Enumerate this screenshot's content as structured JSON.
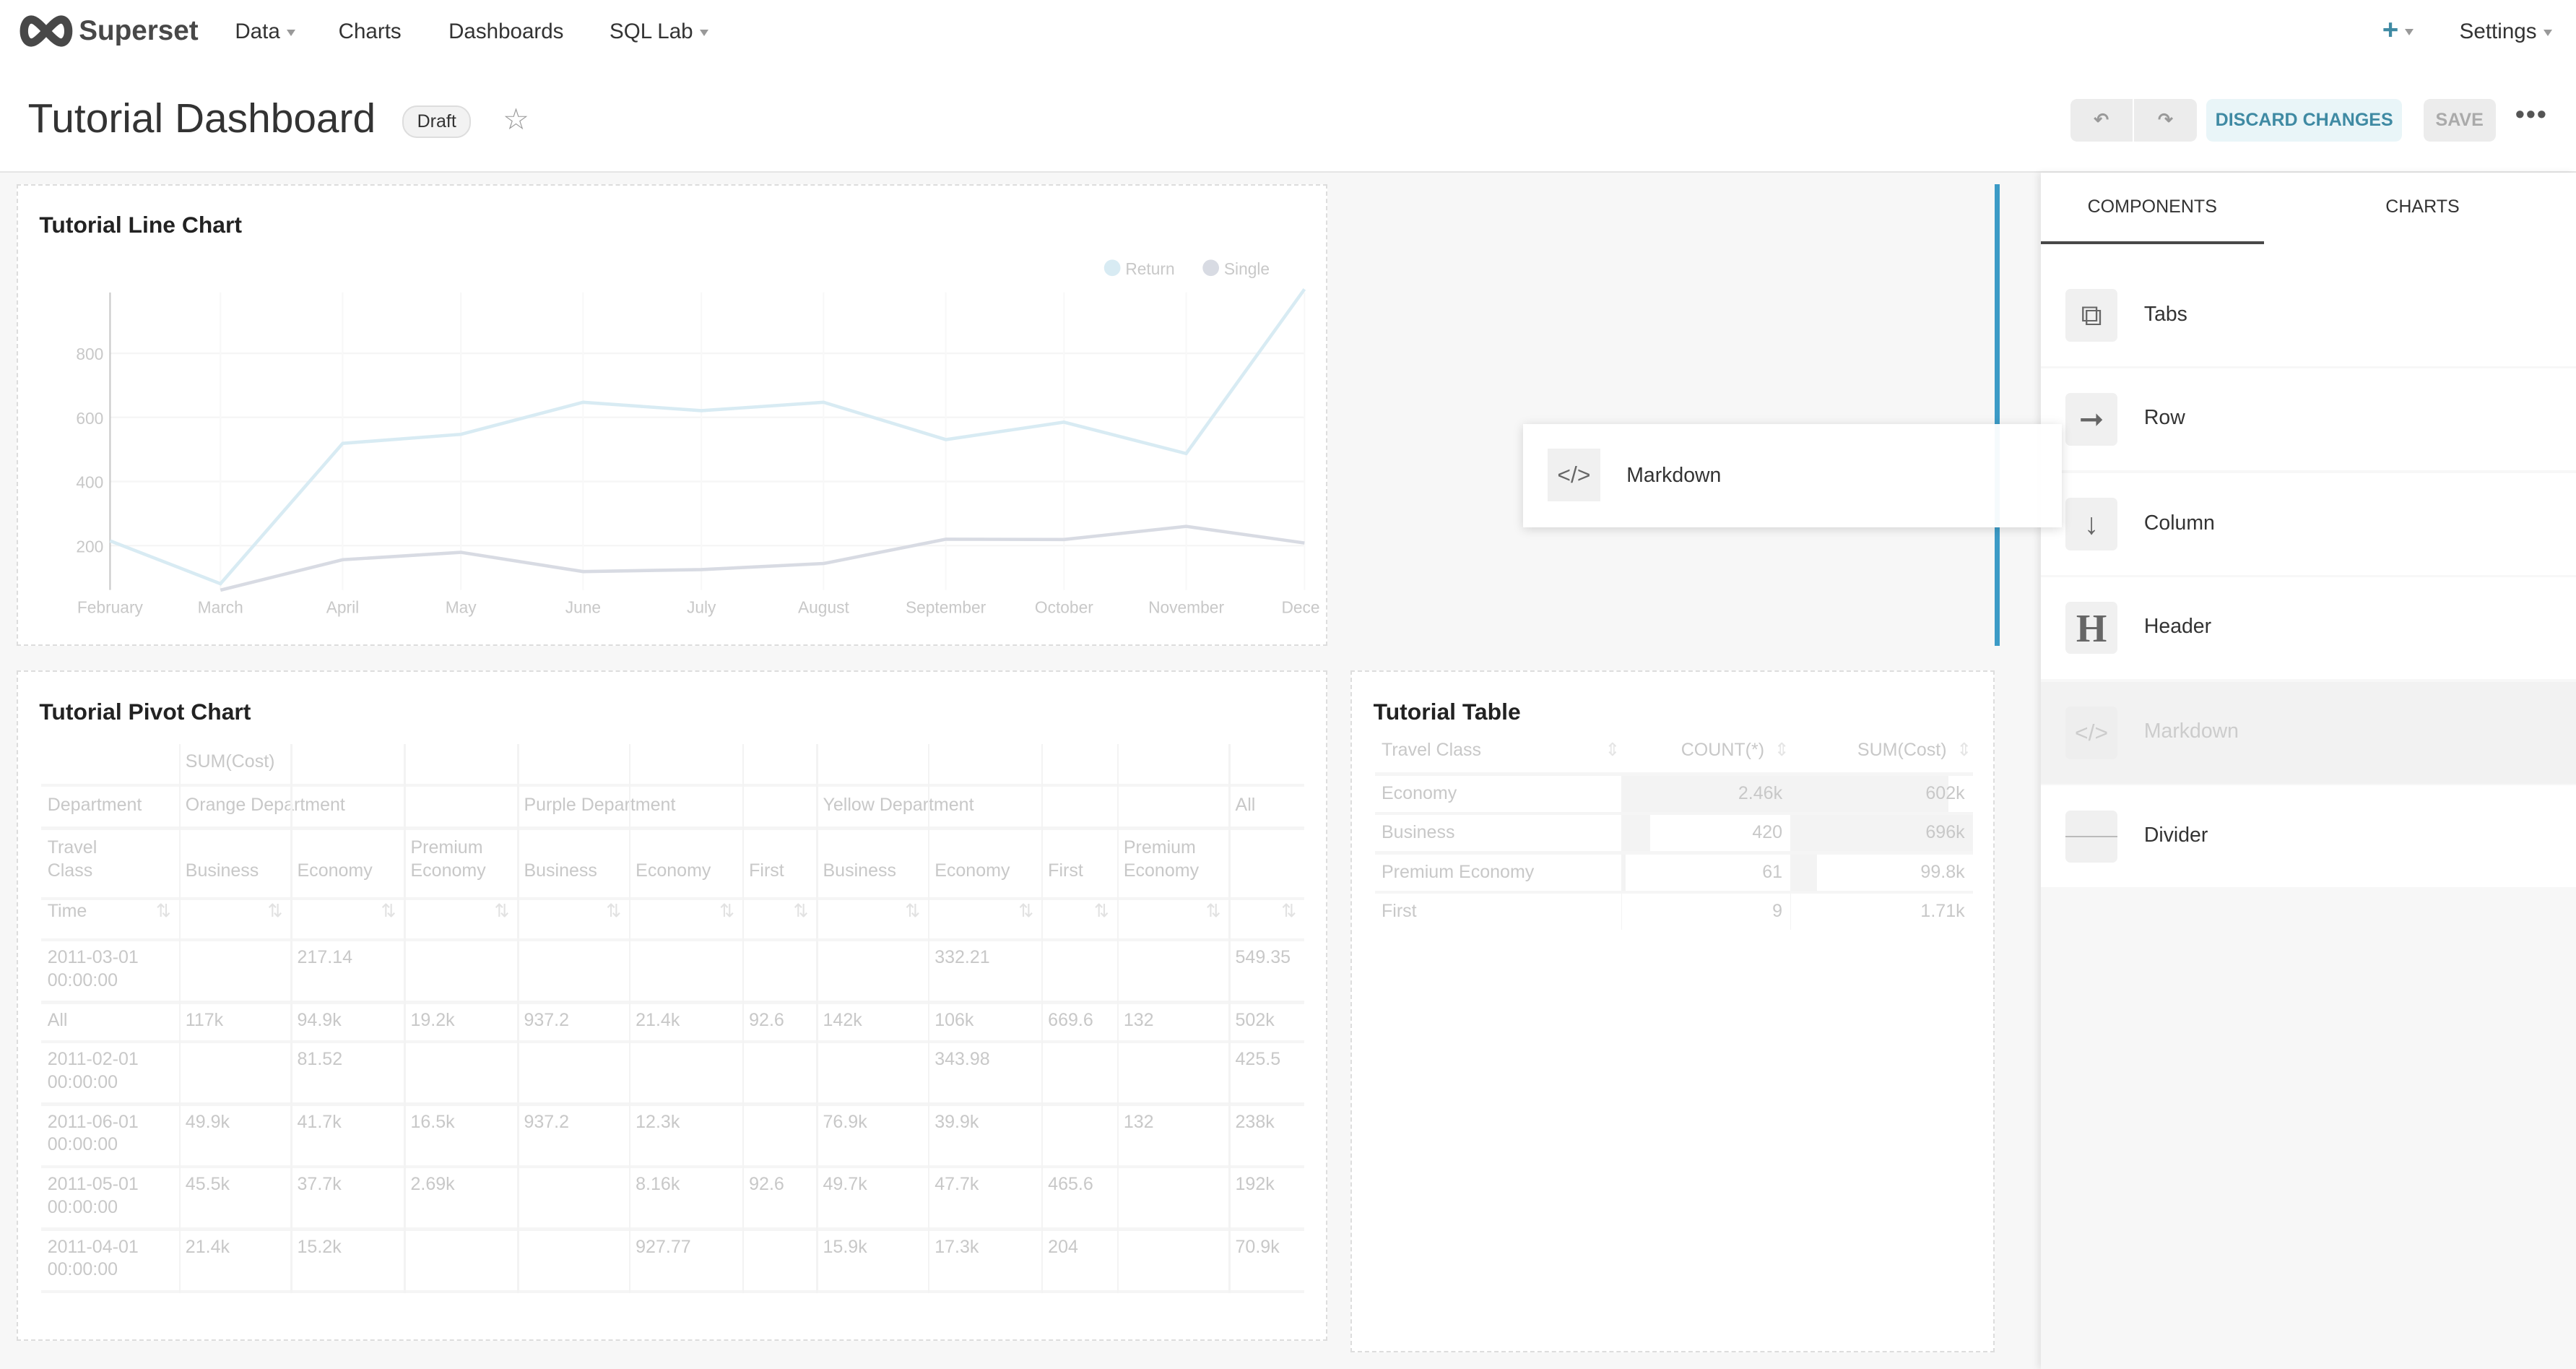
{
  "navbar": {
    "brand": "Superset",
    "menu": [
      {
        "label": "Data",
        "has_dropdown": true
      },
      {
        "label": "Charts",
        "has_dropdown": false
      },
      {
        "label": "Dashboards",
        "has_dropdown": false
      },
      {
        "label": "SQL Lab",
        "has_dropdown": true
      }
    ],
    "plus_icon": "plus-icon",
    "settings_label": "Settings"
  },
  "header": {
    "title": "Tutorial Dashboard",
    "status_badge": "Draft",
    "discard_label": "DISCARD CHANGES",
    "save_label": "SAVE",
    "more_icon": "ellipsis-icon"
  },
  "colors": {
    "accent": "#20a7c9",
    "primary_dark": "#3f8aa3",
    "drop_indicator": "#3c9bc6",
    "return_series": "#d8ebf3",
    "single_series": "#d8dbe3"
  },
  "line_chart": {
    "title": "Tutorial Line Chart",
    "chart_data": {
      "type": "line",
      "x": [
        "February",
        "March",
        "April",
        "May",
        "June",
        "July",
        "August",
        "September",
        "October",
        "November",
        "December"
      ],
      "x_tick_labels": [
        "February",
        "March",
        "April",
        "May",
        "June",
        "July",
        "August",
        "September",
        "October",
        "November",
        "Dece"
      ],
      "y_ticks": [
        "200",
        "400",
        "600",
        "800"
      ],
      "ylim": [
        60,
        1000
      ],
      "grid": true,
      "legend_placement": "top-right",
      "series": [
        {
          "name": "Return",
          "values": [
            215,
            81,
            519,
            547,
            647,
            621,
            647,
            531,
            585,
            487,
            1000
          ]
        },
        {
          "name": "Single",
          "values": [
            null,
            61,
            156,
            179,
            119,
            125,
            144,
            220,
            219,
            260,
            208
          ]
        }
      ]
    }
  },
  "pivot": {
    "title": "Tutorial Pivot Chart",
    "metric": "SUM(Cost)",
    "dept_label": "Department",
    "departments": [
      "Orange Department",
      "Purple Department",
      "Yellow Department",
      "All"
    ],
    "class_label": "Travel Class",
    "classes": [
      "Business",
      "Economy",
      "Premium Economy",
      "Business",
      "Economy",
      "First",
      "Business",
      "Economy",
      "First",
      "Premium Economy"
    ],
    "time_label": "Time",
    "rows": [
      {
        "time": "2011-03-01 00:00:00",
        "cells": [
          "",
          "217.14",
          "",
          "",
          "",
          "",
          "",
          "332.21",
          "",
          "",
          "549.35"
        ]
      },
      {
        "time": "All",
        "cells": [
          "117k",
          "94.9k",
          "19.2k",
          "937.2",
          "21.4k",
          "92.6",
          "142k",
          "106k",
          "669.6",
          "132",
          "502k"
        ]
      },
      {
        "time": "2011-02-01 00:00:00",
        "cells": [
          "",
          "81.52",
          "",
          "",
          "",
          "",
          "",
          "343.98",
          "",
          "",
          "425.5"
        ]
      },
      {
        "time": "2011-06-01 00:00:00",
        "cells": [
          "49.9k",
          "41.7k",
          "16.5k",
          "937.2",
          "12.3k",
          "",
          "76.9k",
          "39.9k",
          "",
          "132",
          "238k"
        ]
      },
      {
        "time": "2011-05-01 00:00:00",
        "cells": [
          "45.5k",
          "37.7k",
          "2.69k",
          "",
          "8.16k",
          "92.6",
          "49.7k",
          "47.7k",
          "465.6",
          "",
          "192k"
        ]
      },
      {
        "time": "2011-04-01 00:00:00",
        "cells": [
          "21.4k",
          "15.2k",
          "",
          "",
          "927.77",
          "",
          "15.9k",
          "17.3k",
          "204",
          "",
          "70.9k"
        ]
      }
    ]
  },
  "table": {
    "title": "Tutorial Table",
    "columns": [
      "Travel Class",
      "COUNT(*)",
      "SUM(Cost)"
    ],
    "rows": [
      {
        "class": "Economy",
        "count": "2.46k",
        "sum": "602k",
        "count_frac": 1.0,
        "sum_frac": 0.865
      },
      {
        "class": "Business",
        "count": "420",
        "sum": "696k",
        "count_frac": 0.171,
        "sum_frac": 1.0
      },
      {
        "class": "Premium Economy",
        "count": "61",
        "sum": "99.8k",
        "count_frac": 0.025,
        "sum_frac": 0.143
      },
      {
        "class": "First",
        "count": "9",
        "sum": "1.71k",
        "count_frac": 0.004,
        "sum_frac": 0.002
      }
    ]
  },
  "drag_ghost": {
    "label": "Markdown",
    "icon": "code-icon"
  },
  "sidebar": {
    "tabs": [
      {
        "label": "COMPONENTS",
        "active": true
      },
      {
        "label": "CHARTS",
        "active": false
      }
    ],
    "items": [
      {
        "label": "Tabs",
        "icon": "tabs-icon"
      },
      {
        "label": "Row",
        "icon": "arrow-right-icon"
      },
      {
        "label": "Column",
        "icon": "arrow-down-icon"
      },
      {
        "label": "Header",
        "icon": "header-icon"
      },
      {
        "label": "Markdown",
        "icon": "code-icon",
        "dragging": true
      },
      {
        "label": "Divider",
        "icon": "divider-icon"
      }
    ]
  }
}
